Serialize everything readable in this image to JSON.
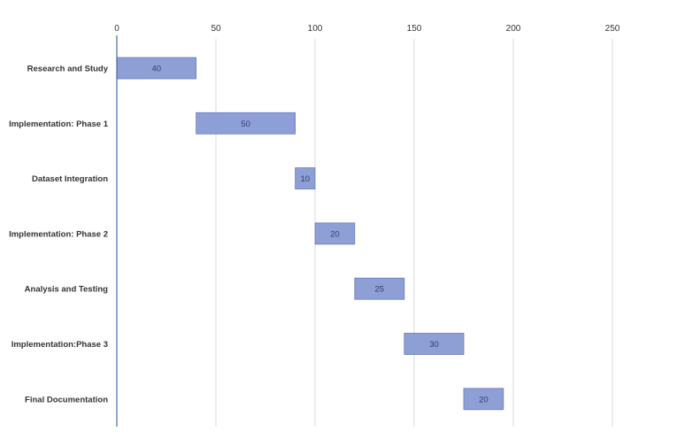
{
  "chart_data": {
    "type": "bar",
    "orientation": "horizontal",
    "stacked": true,
    "title": "",
    "xlabel": "",
    "ylabel": "",
    "xlim": [
      0,
      250
    ],
    "x_ticks": [
      "0",
      "50",
      "100",
      "150",
      "200",
      "250"
    ],
    "x_axis_position": "top",
    "grid": true,
    "legend": "none",
    "categories": [
      "Research and Study",
      "Implementation: Phase 1",
      "Dataset Integration",
      "Implementation: Phase 2",
      "Analysis and Testing",
      "Implementation:Phase 3",
      "Final Documentation"
    ],
    "start": [
      0,
      40,
      90,
      100,
      120,
      145,
      175
    ],
    "values": [
      40,
      50,
      10,
      20,
      25,
      30,
      20
    ],
    "data_labels": [
      "40",
      "50",
      "10",
      "20",
      "25",
      "30",
      "20"
    ],
    "colors": {
      "bar": "#8e9fd6",
      "bar_border": "#6a7cba",
      "axis": "#4a6aa5",
      "grid": "#d9d9d9"
    }
  }
}
